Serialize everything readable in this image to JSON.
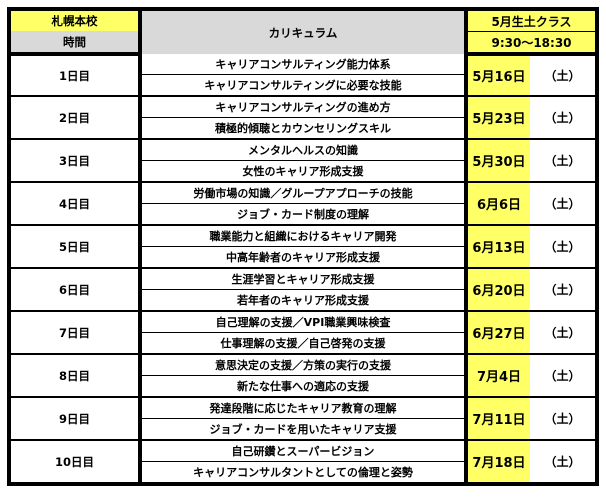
{
  "header": {
    "school": "札幌本校",
    "time_label": "時間",
    "curriculum_label": "カリキュラム",
    "class_name": "5月生土クラス",
    "hours": "9:30～18:30"
  },
  "colors": {
    "highlight_yellow": "#ffff66",
    "header_gray": "#d9d9d9",
    "border": "#000000"
  },
  "days": [
    {
      "label": "1日目",
      "topics": [
        "キャリアコンサルティング能力体系",
        "キャリアコンサルティングに必要な技能"
      ],
      "date": "5月16日",
      "weekday": "（土）"
    },
    {
      "label": "2日目",
      "topics": [
        "キャリアコンサルティングの進め方",
        "積極的傾聴とカウンセリングスキル"
      ],
      "date": "5月23日",
      "weekday": "（土）"
    },
    {
      "label": "3日目",
      "topics": [
        "メンタルヘルスの知識",
        "女性のキャリア形成支援"
      ],
      "date": "5月30日",
      "weekday": "（土）"
    },
    {
      "label": "4日目",
      "topics": [
        "労働市場の知識／グループアプローチの技能",
        "ジョブ・カード制度の理解"
      ],
      "date": "6月6日",
      "weekday": "（土）"
    },
    {
      "label": "5日目",
      "topics": [
        "職業能力と組織におけるキャリア開発",
        "中高年齢者のキャリア形成支援"
      ],
      "date": "6月13日",
      "weekday": "（土）"
    },
    {
      "label": "6日目",
      "topics": [
        "生涯学習とキャリア形成支援",
        "若年者のキャリア形成支援"
      ],
      "date": "6月20日",
      "weekday": "（土）"
    },
    {
      "label": "7日目",
      "topics": [
        "自己理解の支援／VPI職業興味検査",
        "仕事理解の支援／自己啓発の支援"
      ],
      "date": "6月27日",
      "weekday": "（土）"
    },
    {
      "label": "8日目",
      "topics": [
        "意思決定の支援／方策の実行の支援",
        "新たな仕事への適応の支援"
      ],
      "date": "7月4日",
      "weekday": "（土）"
    },
    {
      "label": "9日目",
      "topics": [
        "発達段階に応じたキャリア教育の理解",
        "ジョブ・カードを用いたキャリア支援"
      ],
      "date": "7月11日",
      "weekday": "（土）"
    },
    {
      "label": "10日目",
      "topics": [
        "自己研鑽とスーパービジョン",
        "キャリアコンサルタントとしての倫理と姿勢"
      ],
      "date": "7月18日",
      "weekday": "（土）"
    }
  ]
}
